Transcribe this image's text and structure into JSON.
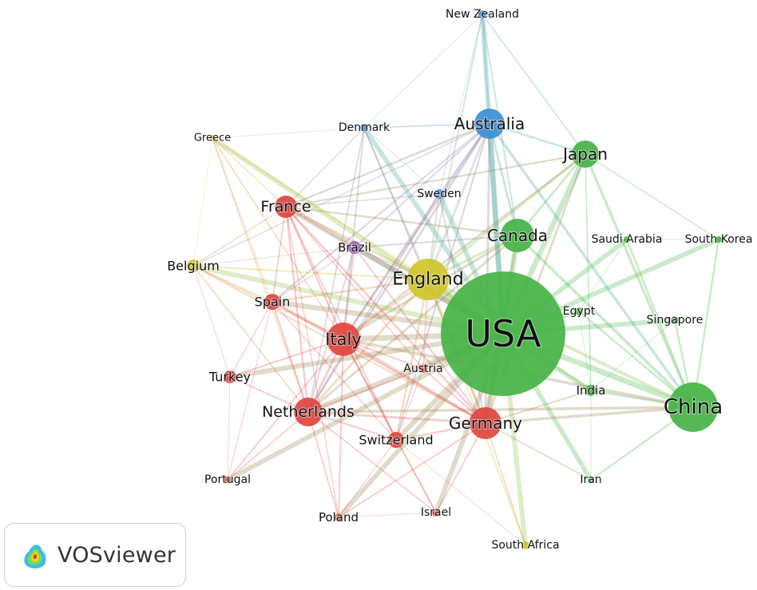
{
  "app": {
    "name": "VOSviewer"
  },
  "clusters": {
    "red": "#e0443f",
    "green": "#45b346",
    "blue": "#3a8fd6",
    "yellow": "#cfc62a",
    "purple": "#9b5fc5"
  },
  "nodes": [
    {
      "id": "usa",
      "label": "USA",
      "cluster": "green"
    },
    {
      "id": "china",
      "label": "China",
      "cluster": "green"
    },
    {
      "id": "japan",
      "label": "Japan",
      "cluster": "green"
    },
    {
      "id": "canada",
      "label": "Canada",
      "cluster": "green"
    },
    {
      "id": "saudi",
      "label": "Saudi Arabia",
      "cluster": "green"
    },
    {
      "id": "skorea",
      "label": "South Korea",
      "cluster": "green"
    },
    {
      "id": "egypt",
      "label": "Egypt",
      "cluster": "green"
    },
    {
      "id": "singapore",
      "label": "Singapore",
      "cluster": "green"
    },
    {
      "id": "india",
      "label": "India",
      "cluster": "green"
    },
    {
      "id": "iran",
      "label": "Iran",
      "cluster": "green"
    },
    {
      "id": "australia",
      "label": "Australia",
      "cluster": "blue"
    },
    {
      "id": "nz",
      "label": "New Zealand",
      "cluster": "blue"
    },
    {
      "id": "denmark",
      "label": "Denmark",
      "cluster": "blue"
    },
    {
      "id": "sweden",
      "label": "Sweden",
      "cluster": "blue"
    },
    {
      "id": "england",
      "label": "England",
      "cluster": "yellow"
    },
    {
      "id": "belgium",
      "label": "Belgium",
      "cluster": "yellow"
    },
    {
      "id": "greece",
      "label": "Greece",
      "cluster": "yellow"
    },
    {
      "id": "safrica",
      "label": "South Africa",
      "cluster": "yellow"
    },
    {
      "id": "brazil",
      "label": "Brazil",
      "cluster": "purple"
    },
    {
      "id": "france",
      "label": "France",
      "cluster": "red"
    },
    {
      "id": "spain",
      "label": "Spain",
      "cluster": "red"
    },
    {
      "id": "italy",
      "label": "Italy",
      "cluster": "red"
    },
    {
      "id": "turkey",
      "label": "Turkey",
      "cluster": "red"
    },
    {
      "id": "netherlands",
      "label": "Netherlands",
      "cluster": "red"
    },
    {
      "id": "germany",
      "label": "Germany",
      "cluster": "red"
    },
    {
      "id": "switzerland",
      "label": "Switzerland",
      "cluster": "red"
    },
    {
      "id": "austria",
      "label": "Austria",
      "cluster": "red"
    },
    {
      "id": "portugal",
      "label": "Portugal",
      "cluster": "red"
    },
    {
      "id": "poland",
      "label": "Poland",
      "cluster": "red"
    },
    {
      "id": "israel",
      "label": "Israel",
      "cluster": "red"
    }
  ],
  "links": [
    [
      "usa",
      "china"
    ],
    [
      "usa",
      "japan"
    ],
    [
      "usa",
      "canada"
    ],
    [
      "usa",
      "australia"
    ],
    [
      "usa",
      "england"
    ],
    [
      "usa",
      "germany"
    ],
    [
      "usa",
      "italy"
    ],
    [
      "usa",
      "netherlands"
    ],
    [
      "usa",
      "france"
    ],
    [
      "usa",
      "spain"
    ],
    [
      "usa",
      "switzerland"
    ],
    [
      "usa",
      "india"
    ],
    [
      "usa",
      "egypt"
    ],
    [
      "usa",
      "singapore"
    ],
    [
      "usa",
      "saudi"
    ],
    [
      "usa",
      "skorea"
    ],
    [
      "usa",
      "iran"
    ],
    [
      "usa",
      "brazil"
    ],
    [
      "usa",
      "sweden"
    ],
    [
      "usa",
      "denmark"
    ],
    [
      "usa",
      "nz"
    ],
    [
      "usa",
      "belgium"
    ],
    [
      "usa",
      "austria"
    ],
    [
      "usa",
      "israel"
    ],
    [
      "usa",
      "safrica"
    ],
    [
      "usa",
      "poland"
    ],
    [
      "usa",
      "turkey"
    ],
    [
      "usa",
      "greece"
    ],
    [
      "usa",
      "portugal"
    ],
    [
      "china",
      "japan"
    ],
    [
      "china",
      "canada"
    ],
    [
      "china",
      "australia"
    ],
    [
      "china",
      "england"
    ],
    [
      "china",
      "germany"
    ],
    [
      "china",
      "singapore"
    ],
    [
      "china",
      "india"
    ],
    [
      "china",
      "skorea"
    ],
    [
      "china",
      "saudi"
    ],
    [
      "china",
      "egypt"
    ],
    [
      "china",
      "italy"
    ],
    [
      "china",
      "iran"
    ],
    [
      "china",
      "netherlands"
    ],
    [
      "japan",
      "canada"
    ],
    [
      "japan",
      "australia"
    ],
    [
      "japan",
      "england"
    ],
    [
      "japan",
      "germany"
    ],
    [
      "japan",
      "italy"
    ],
    [
      "japan",
      "skorea"
    ],
    [
      "japan",
      "france"
    ],
    [
      "japan",
      "india"
    ],
    [
      "canada",
      "australia"
    ],
    [
      "canada",
      "england"
    ],
    [
      "canada",
      "germany"
    ],
    [
      "canada",
      "italy"
    ],
    [
      "canada",
      "france"
    ],
    [
      "canada",
      "netherlands"
    ],
    [
      "canada",
      "brazil"
    ],
    [
      "australia",
      "nz"
    ],
    [
      "australia",
      "england"
    ],
    [
      "australia",
      "denmark"
    ],
    [
      "australia",
      "sweden"
    ],
    [
      "australia",
      "germany"
    ],
    [
      "australia",
      "italy"
    ],
    [
      "australia",
      "netherlands"
    ],
    [
      "australia",
      "france"
    ],
    [
      "australia",
      "spain"
    ],
    [
      "australia",
      "belgium"
    ],
    [
      "australia",
      "brazil"
    ],
    [
      "australia",
      "switzerland"
    ],
    [
      "nz",
      "denmark"
    ],
    [
      "nz",
      "england"
    ],
    [
      "nz",
      "sweden"
    ],
    [
      "nz",
      "japan"
    ],
    [
      "nz",
      "canada"
    ],
    [
      "denmark",
      "england"
    ],
    [
      "denmark",
      "sweden"
    ],
    [
      "denmark",
      "germany"
    ],
    [
      "denmark",
      "netherlands"
    ],
    [
      "denmark",
      "italy"
    ],
    [
      "denmark",
      "france"
    ],
    [
      "denmark",
      "greece"
    ],
    [
      "sweden",
      "england"
    ],
    [
      "sweden",
      "germany"
    ],
    [
      "sweden",
      "italy"
    ],
    [
      "sweden",
      "netherlands"
    ],
    [
      "sweden",
      "france"
    ],
    [
      "england",
      "germany"
    ],
    [
      "england",
      "italy"
    ],
    [
      "england",
      "netherlands"
    ],
    [
      "england",
      "france"
    ],
    [
      "england",
      "spain"
    ],
    [
      "england",
      "belgium"
    ],
    [
      "england",
      "brazil"
    ],
    [
      "england",
      "switzerland"
    ],
    [
      "england",
      "austria"
    ],
    [
      "england",
      "greece"
    ],
    [
      "england",
      "safrica"
    ],
    [
      "england",
      "india"
    ],
    [
      "belgium",
      "france"
    ],
    [
      "belgium",
      "italy"
    ],
    [
      "belgium",
      "spain"
    ],
    [
      "belgium",
      "netherlands"
    ],
    [
      "belgium",
      "germany"
    ],
    [
      "belgium",
      "greece"
    ],
    [
      "belgium",
      "turkey"
    ],
    [
      "belgium",
      "brazil"
    ],
    [
      "greece",
      "italy"
    ],
    [
      "greece",
      "france"
    ],
    [
      "greece",
      "spain"
    ],
    [
      "greece",
      "netherlands"
    ],
    [
      "france",
      "italy"
    ],
    [
      "france",
      "spain"
    ],
    [
      "france",
      "germany"
    ],
    [
      "france",
      "netherlands"
    ],
    [
      "france",
      "switzerland"
    ],
    [
      "france",
      "brazil"
    ],
    [
      "france",
      "austria"
    ],
    [
      "france",
      "poland"
    ],
    [
      "spain",
      "italy"
    ],
    [
      "spain",
      "germany"
    ],
    [
      "spain",
      "netherlands"
    ],
    [
      "spain",
      "portugal"
    ],
    [
      "spain",
      "switzerland"
    ],
    [
      "spain",
      "turkey"
    ],
    [
      "italy",
      "germany"
    ],
    [
      "italy",
      "netherlands"
    ],
    [
      "italy",
      "switzerland"
    ],
    [
      "italy",
      "austria"
    ],
    [
      "italy",
      "brazil"
    ],
    [
      "italy",
      "turkey"
    ],
    [
      "italy",
      "poland"
    ],
    [
      "italy",
      "israel"
    ],
    [
      "italy",
      "portugal"
    ],
    [
      "netherlands",
      "germany"
    ],
    [
      "netherlands",
      "switzerland"
    ],
    [
      "netherlands",
      "poland"
    ],
    [
      "netherlands",
      "portugal"
    ],
    [
      "netherlands",
      "turkey"
    ],
    [
      "netherlands",
      "israel"
    ],
    [
      "netherlands",
      "austria"
    ],
    [
      "germany",
      "switzerland"
    ],
    [
      "germany",
      "austria"
    ],
    [
      "germany",
      "poland"
    ],
    [
      "germany",
      "israel"
    ],
    [
      "germany",
      "safrica"
    ],
    [
      "germany",
      "iran"
    ],
    [
      "germany",
      "india"
    ],
    [
      "switzerland",
      "austria"
    ],
    [
      "switzerland",
      "poland"
    ],
    [
      "switzerland",
      "israel"
    ],
    [
      "brazil",
      "spain"
    ],
    [
      "brazil",
      "netherlands"
    ],
    [
      "brazil",
      "germany"
    ],
    [
      "turkey",
      "portugal"
    ],
    [
      "israel",
      "poland"
    ],
    [
      "safrica",
      "switzerland"
    ],
    [
      "egypt",
      "saudi"
    ],
    [
      "egypt",
      "india"
    ],
    [
      "saudi",
      "skorea"
    ],
    [
      "singapore",
      "india"
    ],
    [
      "india",
      "iran"
    ]
  ]
}
